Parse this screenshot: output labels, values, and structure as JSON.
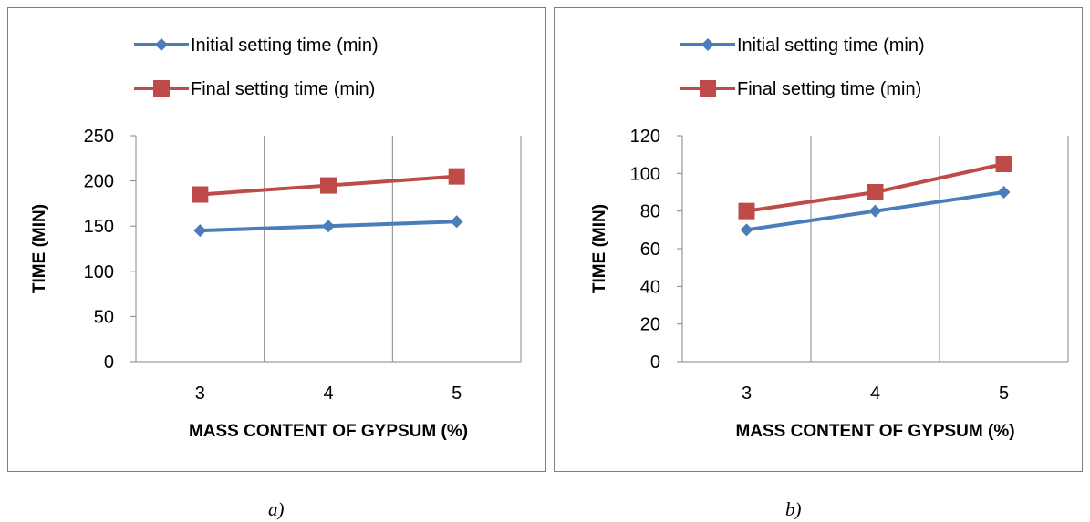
{
  "chart_data": [
    {
      "type": "line",
      "caption": "a)",
      "categories": [
        "3",
        "4",
        "5"
      ],
      "xlabel": "MASS CONTENT OF GYPSUM (%)",
      "ylabel": "TIME (MIN)",
      "ylim": [
        0,
        250
      ],
      "yticks": [
        "0",
        "50",
        "100",
        "150",
        "200",
        "250"
      ],
      "grid": "vertical",
      "legend": "top-left",
      "series": [
        {
          "name": "Initial setting time (min)",
          "marker": "diamond",
          "color": "#4a7ebb",
          "values": [
            145,
            150,
            155
          ]
        },
        {
          "name": "Final setting time (min)",
          "marker": "square",
          "color": "#be4b48",
          "values": [
            185,
            195,
            205
          ]
        }
      ]
    },
    {
      "type": "line",
      "caption": "b)",
      "categories": [
        "3",
        "4",
        "5"
      ],
      "xlabel": "MASS CONTENT OF GYPSUM (%)",
      "ylabel": "TIME (MIN)",
      "ylim": [
        0,
        120
      ],
      "yticks": [
        "0",
        "20",
        "40",
        "60",
        "80",
        "100",
        "120"
      ],
      "grid": "vertical",
      "legend": "top-left",
      "series": [
        {
          "name": "Initial setting time (min)",
          "marker": "diamond",
          "color": "#4a7ebb",
          "values": [
            70,
            80,
            90
          ]
        },
        {
          "name": "Final setting time (min)",
          "marker": "square",
          "color": "#be4b48",
          "values": [
            80,
            90,
            105
          ]
        }
      ]
    }
  ]
}
